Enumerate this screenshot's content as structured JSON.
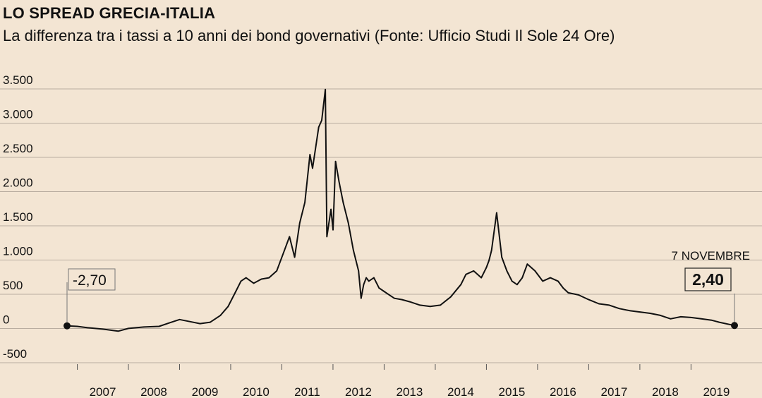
{
  "header": {
    "title": "LO SPREAD GRECIA-ITALIA",
    "subtitle": "La differenza tra i tassi a 10 anni dei bond governativi (Fonte: Ufficio Studi Il Sole 24 Ore)"
  },
  "colors": {
    "background": "#f3e5d3",
    "line": "#111111",
    "grid": "#b9ada0"
  },
  "chart_data": {
    "type": "line",
    "title": "LO SPREAD GRECIA-ITALIA",
    "subtitle": "La differenza tra i tassi a 10 anni dei bond governativi (Fonte: Ufficio Studi Il Sole 24 Ore)",
    "xlabel": "",
    "ylabel": "",
    "ylim": [
      -500,
      3500
    ],
    "y_ticks": [
      3500,
      3000,
      2500,
      2000,
      1500,
      1000,
      500,
      0,
      -500
    ],
    "y_tick_labels": [
      "3.500",
      "3.000",
      "2.500",
      "2.000",
      "1.500",
      "1.000",
      "500",
      "0",
      "-500"
    ],
    "x_ticks": [
      "2007",
      "2008",
      "2009",
      "2010",
      "2011",
      "2012",
      "2013",
      "2014",
      "2015",
      "2016",
      "2017",
      "2018",
      "2019"
    ],
    "grid": true,
    "legend": "none",
    "series": [
      {
        "x": [
          2006.8,
          2007.0,
          2007.2,
          2007.5,
          2007.8,
          2008.0,
          2008.3,
          2008.6,
          2008.8,
          2009.0,
          2009.2,
          2009.4,
          2009.6,
          2009.8,
          2009.95,
          2010.1,
          2010.2,
          2010.3,
          2010.45,
          2010.6,
          2010.75,
          2010.9,
          2011.05,
          2011.15,
          2011.25,
          2011.35,
          2011.45,
          2011.55,
          2011.6,
          2011.68,
          2011.72,
          2011.78,
          2011.85,
          2011.88,
          2011.92,
          2011.96,
          2012.0,
          2012.05,
          2012.12,
          2012.2,
          2012.3,
          2012.4,
          2012.5,
          2012.55,
          2012.6,
          2012.65,
          2012.7,
          2012.8,
          2012.9,
          2013.0,
          2013.1,
          2013.2,
          2013.35,
          2013.5,
          2013.7,
          2013.9,
          2014.1,
          2014.3,
          2014.5,
          2014.6,
          2014.75,
          2014.9,
          2015.0,
          2015.05,
          2015.1,
          2015.2,
          2015.3,
          2015.4,
          2015.5,
          2015.6,
          2015.7,
          2015.8,
          2015.95,
          2016.1,
          2016.25,
          2016.4,
          2016.5,
          2016.6,
          2016.8,
          2017.0,
          2017.2,
          2017.4,
          2017.6,
          2017.8,
          2018.0,
          2018.2,
          2018.4,
          2018.6,
          2018.8,
          2019.0,
          2019.2,
          2019.4,
          2019.55,
          2019.85
        ],
        "values": [
          -2.7,
          -10,
          -30,
          -50,
          -80,
          -40,
          -20,
          -10,
          40,
          90,
          60,
          30,
          50,
          150,
          280,
          500,
          650,
          700,
          620,
          680,
          700,
          800,
          1100,
          1300,
          1000,
          1500,
          1800,
          2500,
          2300,
          2700,
          2900,
          3000,
          3450,
          1300,
          1500,
          1700,
          1400,
          2400,
          2100,
          1800,
          1500,
          1100,
          800,
          400,
          600,
          700,
          650,
          700,
          550,
          500,
          450,
          400,
          380,
          350,
          300,
          280,
          300,
          420,
          600,
          750,
          800,
          700,
          850,
          950,
          1100,
          1650,
          1000,
          800,
          650,
          600,
          700,
          900,
          800,
          650,
          700,
          650,
          550,
          480,
          450,
          380,
          320,
          300,
          250,
          220,
          200,
          180,
          150,
          100,
          130,
          120,
          100,
          80,
          50,
          2.4
        ]
      }
    ],
    "annotations": [
      {
        "label": "-2,70",
        "x": 2006.8,
        "y": -2.7
      },
      {
        "label": "7 NOVEMBRE",
        "x": 2019.85,
        "y": 2.4
      },
      {
        "label": "2,40",
        "x": 2019.85,
        "y": 2.4
      }
    ]
  }
}
